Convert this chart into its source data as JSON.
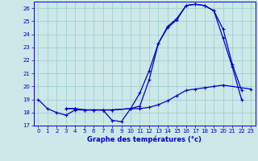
{
  "title": "Graphe des températures (°c)",
  "bg_color": "#cce8e8",
  "line_color": "#0000cc",
  "grid_color": "#99cccc",
  "ylim": [
    17,
    26.5
  ],
  "xlim": [
    -0.5,
    23.5
  ],
  "yticks": [
    17,
    18,
    19,
    20,
    21,
    22,
    23,
    24,
    25,
    26
  ],
  "xticks": [
    0,
    1,
    2,
    3,
    4,
    5,
    6,
    7,
    8,
    9,
    10,
    11,
    12,
    13,
    14,
    15,
    16,
    17,
    18,
    19,
    20,
    21,
    22,
    23
  ],
  "line1_x": [
    0,
    1,
    2,
    3,
    4,
    5,
    6,
    7,
    8,
    9,
    10,
    11,
    12,
    13,
    14,
    15,
    16,
    17,
    18,
    19,
    20,
    21,
    22
  ],
  "line1_y": [
    19.0,
    18.3,
    18.0,
    17.8,
    18.2,
    18.2,
    18.2,
    18.2,
    17.4,
    17.3,
    18.3,
    18.5,
    20.5,
    23.3,
    24.6,
    25.2,
    26.2,
    26.3,
    26.2,
    25.8,
    24.4,
    21.7,
    19.7
  ],
  "line2_x": [
    3,
    4,
    5,
    6,
    7,
    8,
    10,
    11,
    12,
    13,
    14,
    15,
    16,
    17,
    18,
    19,
    20,
    23
  ],
  "line2_y": [
    18.3,
    18.3,
    18.2,
    18.2,
    18.2,
    18.2,
    18.3,
    18.3,
    18.4,
    18.6,
    18.9,
    19.3,
    19.7,
    19.8,
    19.9,
    20.0,
    20.1,
    19.8
  ],
  "line3_x": [
    3,
    4,
    5,
    6,
    7,
    8,
    10,
    11,
    12,
    13,
    14,
    15,
    16,
    17,
    18,
    19,
    20,
    21,
    22
  ],
  "line3_y": [
    18.3,
    18.3,
    18.2,
    18.2,
    18.2,
    18.2,
    18.3,
    19.5,
    21.2,
    23.3,
    24.5,
    25.1,
    26.2,
    26.3,
    26.2,
    25.8,
    23.7,
    21.5,
    19.0
  ]
}
